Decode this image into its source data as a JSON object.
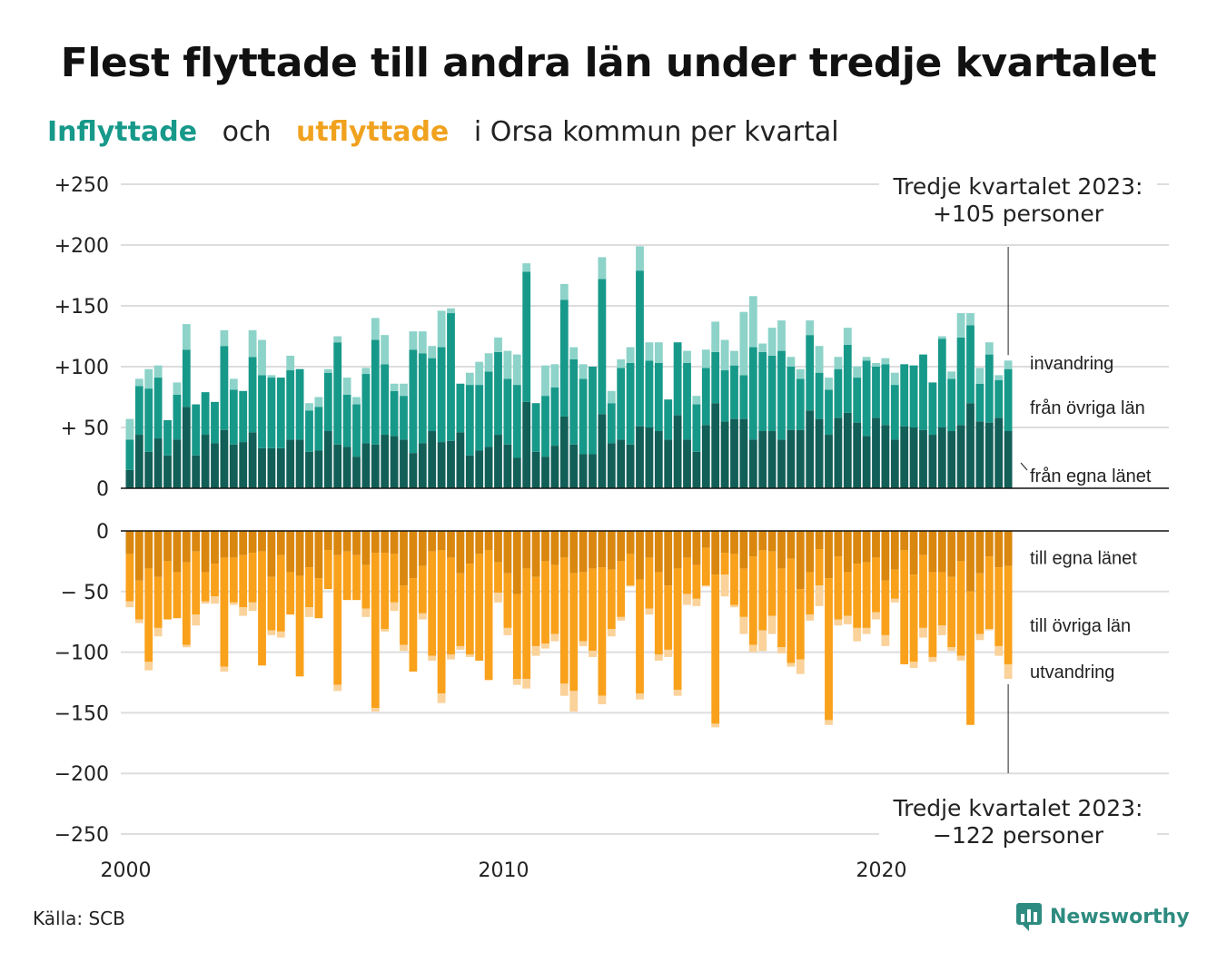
{
  "header": {
    "title": "Flest flyttade till andra län under tredje kvartalet",
    "subtitle_parts": [
      "Inflyttade",
      "och",
      "utflyttade",
      "i Orsa kommun per kvartal"
    ]
  },
  "footer": {
    "source": "Källa: SCB",
    "brand": "Newsworthy"
  },
  "annotations": {
    "top_line1": "Tredje kvartalet 2023:",
    "top_line2": "+105 personer",
    "bottom_line1": "Tredje kvartalet 2023:",
    "bottom_line2": "−122 personer"
  },
  "colors": {
    "in_own": "#125f58",
    "in_other": "#17998a",
    "in_abroad": "#8dd3c9",
    "out_own": "#d9870e",
    "out_other": "#f9a11b",
    "out_abroad": "#fad29a",
    "grid": "#dddddd",
    "text": "#222222"
  },
  "chart_data": {
    "type": "bar",
    "stacked": true,
    "x_start": "2000 Q1",
    "x_ticks": [
      {
        "year": 2000,
        "label": "2000"
      },
      {
        "year": 2010,
        "label": "2010"
      },
      {
        "year": 2020,
        "label": "2020"
      }
    ],
    "y_ticks_top": [
      {
        "value": 250,
        "label": "+250"
      },
      {
        "value": 200,
        "label": "+200"
      },
      {
        "value": 150,
        "label": "+150"
      },
      {
        "value": 100,
        "label": "+100"
      },
      {
        "value": 50,
        "label": "+ 50"
      },
      {
        "value": 0,
        "label": "0"
      }
    ],
    "y_ticks_bottom": [
      {
        "value": 0,
        "label": "0"
      },
      {
        "value": -50,
        "label": "− 50"
      },
      {
        "value": -100,
        "label": "−100"
      },
      {
        "value": -150,
        "label": "−150"
      },
      {
        "value": -200,
        "label": "−200"
      },
      {
        "value": -250,
        "label": "−250"
      }
    ],
    "ylim_top": [
      0,
      250
    ],
    "ylim_bottom": [
      -250,
      0
    ],
    "series_labels": {
      "in_abroad": "invandring",
      "in_other": "från övriga län",
      "in_own": "från egna länet",
      "out_own": "till egna länet",
      "out_other": "till övriga län",
      "out_abroad": "utvandring"
    },
    "inflow_own": [
      15,
      44,
      30,
      41,
      27,
      40,
      67,
      27,
      44,
      37,
      48,
      36,
      38,
      46,
      33,
      33,
      33,
      40,
      40,
      30,
      31,
      47,
      36,
      34,
      26,
      37,
      36,
      44,
      43,
      40,
      29,
      37,
      47,
      38,
      39,
      46,
      27,
      31,
      34,
      44,
      36,
      25,
      71,
      30,
      26,
      35,
      59,
      36,
      28,
      28,
      61,
      37,
      40,
      36,
      51,
      50,
      47,
      40,
      60,
      40,
      30,
      52,
      70,
      55,
      57,
      57,
      40,
      47,
      47,
      40,
      48,
      48,
      64,
      57,
      44,
      58,
      62,
      54,
      43,
      58,
      52,
      40,
      51,
      50,
      48,
      44,
      50,
      47,
      52,
      70,
      55,
      54,
      58,
      47
    ],
    "inflow_other": [
      25,
      40,
      52,
      50,
      29,
      37,
      47,
      42,
      35,
      34,
      69,
      45,
      42,
      62,
      60,
      58,
      58,
      57,
      58,
      34,
      36,
      48,
      84,
      43,
      43,
      57,
      86,
      58,
      37,
      36,
      85,
      74,
      60,
      78,
      105,
      40,
      58,
      54,
      62,
      68,
      54,
      60,
      107,
      40,
      50,
      48,
      96,
      70,
      62,
      72,
      111,
      33,
      59,
      67,
      128,
      55,
      56,
      33,
      60,
      63,
      39,
      47,
      42,
      42,
      44,
      36,
      76,
      65,
      62,
      73,
      52,
      42,
      62,
      38,
      37,
      40,
      56,
      37,
      62,
      42,
      50,
      45,
      51,
      51,
      62,
      43,
      73,
      43,
      72,
      64,
      31,
      56,
      31,
      51
    ],
    "inflow_abroad": [
      17,
      6,
      16,
      10,
      0,
      10,
      21,
      0,
      0,
      0,
      13,
      9,
      0,
      22,
      29,
      2,
      0,
      12,
      0,
      6,
      8,
      3,
      5,
      14,
      6,
      5,
      18,
      24,
      6,
      10,
      15,
      18,
      10,
      30,
      4,
      0,
      10,
      19,
      15,
      12,
      23,
      25,
      7,
      0,
      25,
      19,
      13,
      10,
      12,
      0,
      18,
      10,
      7,
      13,
      20,
      15,
      17,
      0,
      0,
      10,
      7,
      15,
      25,
      25,
      12,
      52,
      42,
      7,
      23,
      25,
      8,
      8,
      12,
      22,
      10,
      10,
      14,
      9,
      3,
      3,
      5,
      10,
      0,
      0,
      0,
      0,
      2,
      6,
      20,
      10,
      13,
      10,
      4,
      7
    ],
    "outflow_own": [
      19,
      41,
      31,
      38,
      25,
      34,
      26,
      17,
      34,
      27,
      22,
      22,
      20,
      18,
      17,
      38,
      20,
      34,
      37,
      30,
      39,
      16,
      20,
      17,
      20,
      28,
      18,
      18,
      19,
      45,
      39,
      29,
      17,
      16,
      22,
      35,
      27,
      19,
      16,
      26,
      35,
      52,
      31,
      38,
      25,
      28,
      22,
      35,
      34,
      31,
      30,
      32,
      25,
      19,
      40,
      22,
      34,
      45,
      31,
      22,
      28,
      14,
      36,
      18,
      19,
      31,
      21,
      16,
      17,
      31,
      23,
      48,
      34,
      15,
      39,
      21,
      34,
      27,
      26,
      22,
      41,
      32,
      16,
      36,
      20,
      34,
      34,
      38,
      25,
      50,
      35,
      21,
      30,
      29
    ],
    "outflow_other": [
      39,
      32,
      77,
      42,
      48,
      38,
      68,
      52,
      24,
      27,
      90,
      37,
      43,
      41,
      94,
      44,
      63,
      35,
      83,
      33,
      33,
      32,
      107,
      40,
      37,
      36,
      128,
      63,
      40,
      49,
      77,
      39,
      86,
      118,
      80,
      60,
      75,
      88,
      107,
      25,
      45,
      70,
      91,
      57,
      68,
      57,
      104,
      97,
      57,
      68,
      106,
      49,
      46,
      26,
      94,
      42,
      68,
      53,
      100,
      30,
      28,
      31,
      123,
      18,
      42,
      40,
      73,
      66,
      53,
      65,
      86,
      58,
      35,
      30,
      117,
      52,
      36,
      53,
      54,
      45,
      45,
      24,
      94,
      72,
      60,
      70,
      44,
      58,
      78,
      110,
      50,
      60,
      65,
      81
    ],
    "outflow_abroad": [
      5,
      3,
      7,
      7,
      0,
      0,
      2,
      9,
      2,
      6,
      4,
      2,
      7,
      7,
      0,
      4,
      5,
      0,
      0,
      8,
      0,
      0,
      5,
      0,
      0,
      7,
      3,
      2,
      7,
      5,
      0,
      5,
      4,
      8,
      4,
      3,
      2,
      0,
      0,
      8,
      6,
      5,
      8,
      8,
      4,
      6,
      10,
      17,
      4,
      5,
      7,
      6,
      3,
      1,
      5,
      5,
      5,
      6,
      5,
      9,
      6,
      1,
      3,
      18,
      2,
      14,
      6,
      17,
      15,
      5,
      3,
      12,
      5,
      17,
      4,
      5,
      7,
      11,
      5,
      6,
      9,
      3,
      0,
      5,
      8,
      4,
      8,
      3,
      4,
      0,
      5,
      1,
      8,
      12
    ]
  }
}
